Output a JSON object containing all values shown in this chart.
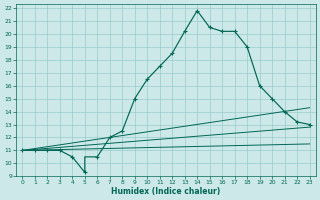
{
  "xlabel": "Humidex (Indice chaleur)",
  "xlim": [
    -0.5,
    23.5
  ],
  "ylim": [
    9,
    22.3
  ],
  "xticks": [
    0,
    1,
    2,
    3,
    4,
    5,
    6,
    7,
    8,
    9,
    10,
    11,
    12,
    13,
    14,
    15,
    16,
    17,
    18,
    19,
    20,
    21,
    22,
    23
  ],
  "yticks": [
    9,
    10,
    11,
    12,
    13,
    14,
    15,
    16,
    17,
    18,
    19,
    20,
    21,
    22
  ],
  "bg_color": "#cce8e8",
  "grid_color": "#99cccc",
  "line_color": "#006655",
  "main_x": [
    0,
    1,
    2,
    3,
    4,
    5,
    5,
    6,
    7,
    8,
    9,
    10,
    11,
    12,
    13,
    14,
    15,
    16,
    17,
    18,
    19,
    20,
    21,
    22,
    23
  ],
  "main_y": [
    11,
    11,
    11,
    11,
    10.5,
    9.3,
    10.5,
    10.5,
    12,
    12.5,
    15,
    16.5,
    17.5,
    18.5,
    20.2,
    21.8,
    20.5,
    20.2,
    20.2,
    19,
    16,
    15,
    14,
    13.2,
    13.0
  ],
  "trend1_x": [
    0,
    23
  ],
  "trend1_y": [
    11.0,
    14.3
  ],
  "trend2_x": [
    0,
    23
  ],
  "trend2_y": [
    11.0,
    12.8
  ],
  "trend3_x": [
    0,
    23
  ],
  "trend3_y": [
    11.0,
    11.5
  ],
  "marker_x": [
    0,
    1,
    2,
    3,
    4,
    5,
    6,
    7,
    8,
    9,
    10,
    11,
    12,
    13,
    14,
    15,
    16,
    17,
    18,
    19,
    20,
    21,
    22,
    23
  ],
  "marker_y": [
    11,
    11,
    11,
    11,
    10.5,
    9.3,
    10.5,
    12,
    12.5,
    15,
    16.5,
    17.5,
    18.5,
    20.2,
    21.8,
    20.5,
    20.2,
    20.2,
    19,
    16,
    15,
    14,
    13.2,
    13.0
  ],
  "figsize": [
    3.2,
    2.0
  ],
  "dpi": 100
}
